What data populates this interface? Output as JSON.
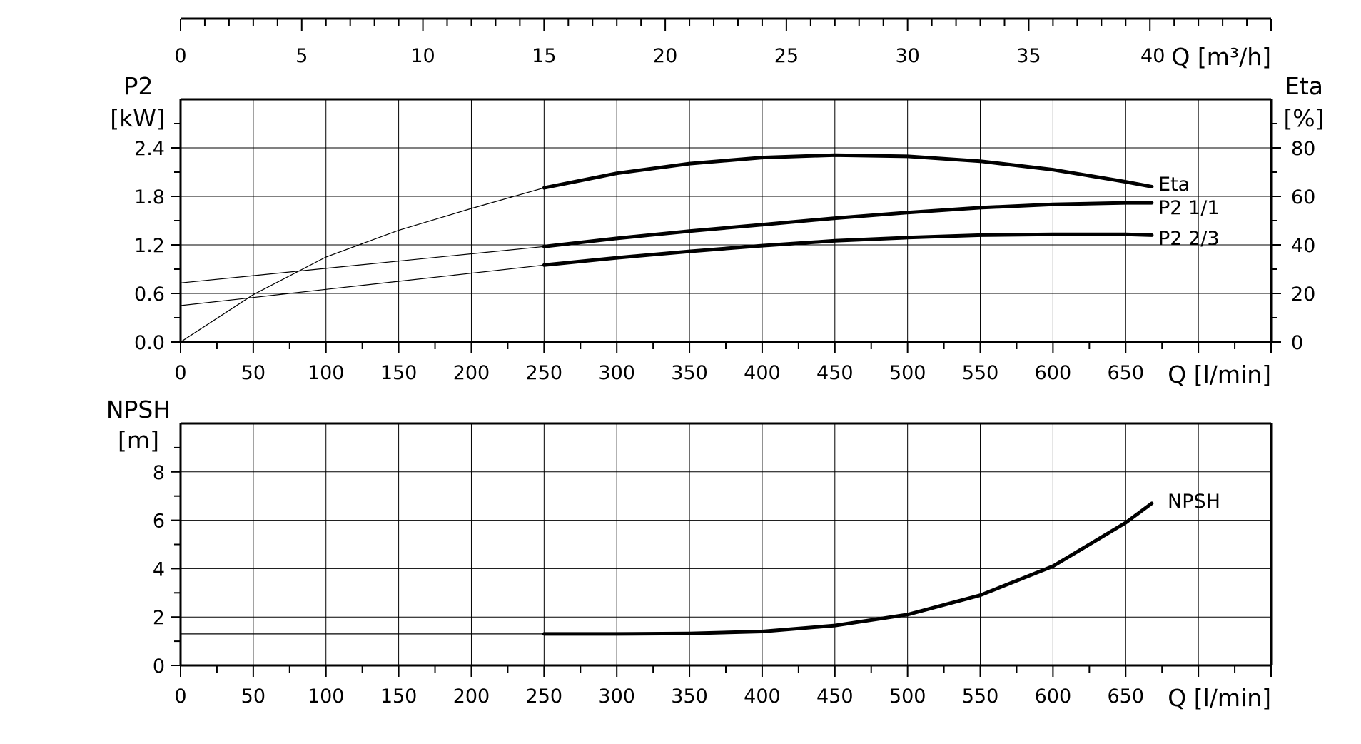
{
  "chart_data": [
    {
      "type": "line",
      "id": "power-efficiency",
      "x_top_axis": {
        "label": "Q [m³/h]",
        "ticks": [
          0,
          5,
          10,
          15,
          20,
          25,
          30,
          35,
          40
        ],
        "xlim": [
          0,
          45
        ]
      },
      "x_axis": {
        "label": "Q [l/min]",
        "ticks": [
          0,
          50,
          100,
          150,
          200,
          250,
          300,
          350,
          400,
          450,
          500,
          550,
          600,
          650
        ],
        "xlim": [
          0,
          750
        ],
        "grid": true
      },
      "y_axis_left": {
        "label_lines": [
          "P2",
          "[kW]"
        ],
        "ticks": [
          "0.0",
          "0.6",
          "1.2",
          "1.8",
          "2.4"
        ],
        "ylim": [
          0,
          3.0
        ],
        "grid": true
      },
      "y_axis_right": {
        "label_lines": [
          "Eta",
          "[%]"
        ],
        "ticks": [
          0,
          20,
          40,
          60,
          80
        ],
        "ylim": [
          0,
          100
        ]
      },
      "series": [
        {
          "name": "Eta",
          "axis": "right",
          "operating_range": [
            250,
            668
          ],
          "x": [
            0,
            50,
            100,
            150,
            200,
            250,
            300,
            350,
            400,
            450,
            500,
            550,
            600,
            650,
            668
          ],
          "y": [
            0,
            19.5,
            35,
            46,
            55,
            63.5,
            69.5,
            73.5,
            76,
            77,
            76.5,
            74.5,
            71,
            66,
            64
          ]
        },
        {
          "name": "P2 1/1",
          "axis": "left",
          "operating_range": [
            250,
            668
          ],
          "x": [
            0,
            50,
            100,
            150,
            200,
            250,
            300,
            350,
            400,
            450,
            500,
            550,
            600,
            650,
            668
          ],
          "y": [
            0.73,
            0.82,
            0.91,
            1.0,
            1.09,
            1.18,
            1.28,
            1.37,
            1.45,
            1.53,
            1.6,
            1.66,
            1.7,
            1.72,
            1.72
          ]
        },
        {
          "name": "P2 2/3",
          "axis": "left",
          "operating_range": [
            250,
            668
          ],
          "x": [
            0,
            50,
            100,
            150,
            200,
            250,
            300,
            350,
            400,
            450,
            500,
            550,
            600,
            650,
            668
          ],
          "y": [
            0.45,
            0.55,
            0.65,
            0.75,
            0.85,
            0.95,
            1.04,
            1.12,
            1.19,
            1.25,
            1.29,
            1.32,
            1.33,
            1.33,
            1.32
          ]
        }
      ]
    },
    {
      "type": "line",
      "id": "npsh",
      "x_axis": {
        "label": "Q [l/min]",
        "ticks": [
          0,
          50,
          100,
          150,
          200,
          250,
          300,
          350,
          400,
          450,
          500,
          550,
          600,
          650
        ],
        "xlim": [
          0,
          750
        ],
        "grid": true
      },
      "y_axis_left": {
        "label_lines": [
          "NPSH",
          "[m]"
        ],
        "ticks": [
          0,
          2,
          4,
          6,
          8
        ],
        "ylim": [
          0,
          10
        ],
        "grid": true
      },
      "series": [
        {
          "name": "NPSH",
          "axis": "left",
          "operating_range": [
            250,
            668
          ],
          "x": [
            0,
            250,
            300,
            350,
            400,
            450,
            500,
            550,
            600,
            650,
            668
          ],
          "y": [
            1.3,
            1.3,
            1.3,
            1.32,
            1.4,
            1.65,
            2.1,
            2.9,
            4.1,
            5.9,
            6.7
          ]
        }
      ]
    }
  ]
}
